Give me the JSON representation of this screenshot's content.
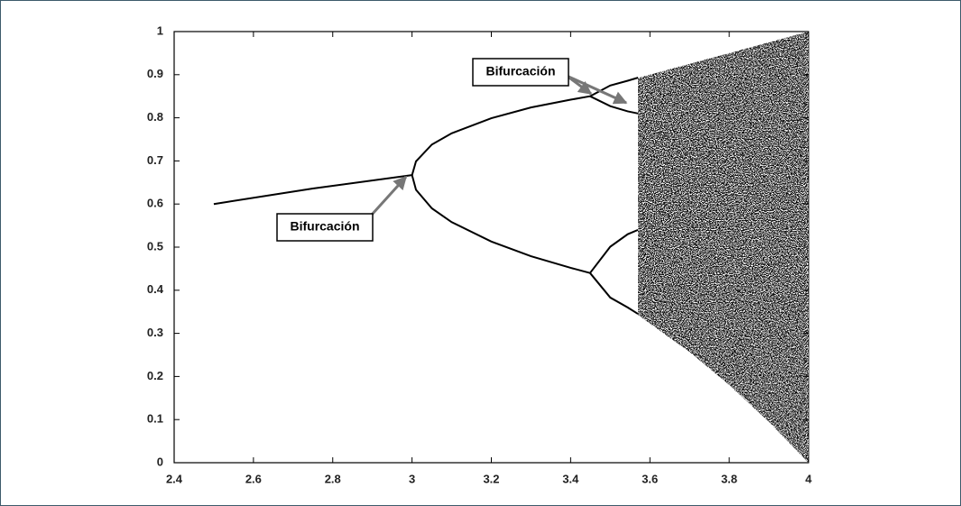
{
  "chart_data": {
    "type": "line",
    "xlim": [
      2.4,
      4
    ],
    "ylim": [
      0,
      1
    ],
    "xticks": [
      2.4,
      2.6,
      2.8,
      3,
      3.2,
      3.4,
      3.6,
      3.8,
      4
    ],
    "yticks": [
      0,
      0.1,
      0.2,
      0.3,
      0.4,
      0.5,
      0.6,
      0.7,
      0.8,
      0.9,
      1
    ],
    "color": "#000000",
    "series": [
      {
        "x": [
          2.5,
          2.75,
          3
        ],
        "values": [
          0.6,
          0.636,
          0.667
        ]
      },
      {
        "x": [
          3,
          3.01,
          3.05,
          3.1,
          3.2,
          3.3,
          3.4,
          3.449
        ],
        "values": [
          0.667,
          0.699,
          0.738,
          0.764,
          0.799,
          0.824,
          0.842,
          0.85
        ]
      },
      {
        "x": [
          3,
          3.01,
          3.05,
          3.1,
          3.2,
          3.3,
          3.4,
          3.449
        ],
        "values": [
          0.667,
          0.633,
          0.59,
          0.558,
          0.513,
          0.479,
          0.452,
          0.44
        ]
      },
      {
        "x": [
          3.449,
          3.5,
          3.544,
          3.57
        ],
        "values": [
          0.85,
          0.875,
          0.886,
          0.893
        ]
      },
      {
        "x": [
          3.449,
          3.5,
          3.544,
          3.57
        ],
        "values": [
          0.85,
          0.827,
          0.815,
          0.81
        ]
      },
      {
        "x": [
          3.449,
          3.5,
          3.544,
          3.57
        ],
        "values": [
          0.44,
          0.501,
          0.53,
          0.54
        ]
      },
      {
        "x": [
          3.449,
          3.5,
          3.544,
          3.57
        ],
        "values": [
          0.44,
          0.383,
          0.36,
          0.345
        ]
      }
    ],
    "band": {
      "x": [
        3.57,
        3.7,
        3.8,
        3.9,
        4
      ],
      "high": [
        0.8925,
        0.925,
        0.95,
        0.975,
        1
      ],
      "low": [
        0.3425,
        0.257,
        0.1805,
        0.095,
        0
      ],
      "color": "#111111"
    },
    "annotations": [
      {
        "text": "Bifurcación"
      },
      {
        "text": "Bifurcación"
      }
    ]
  }
}
